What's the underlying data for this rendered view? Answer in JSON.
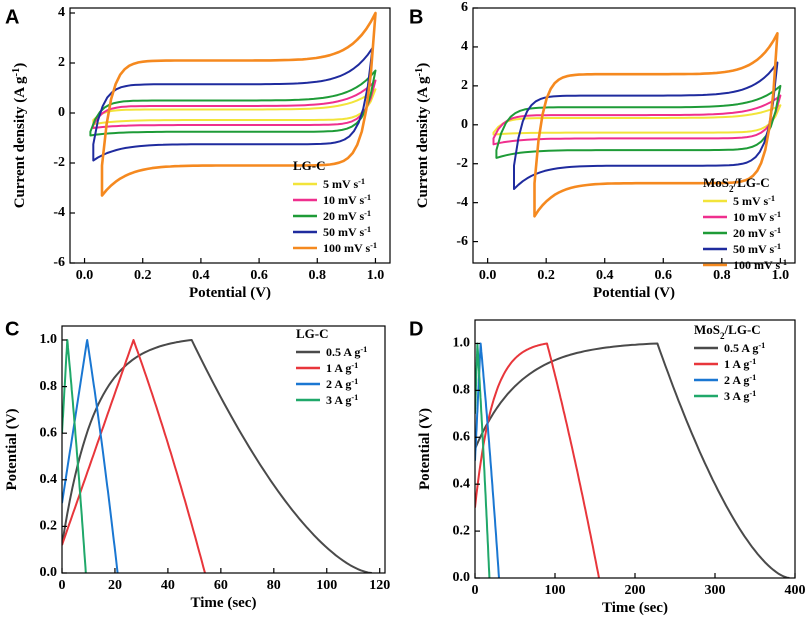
{
  "chart_data": [
    {
      "panel": "A",
      "type": "line",
      "title": "",
      "xlabel": "Potential (V)",
      "ylabel": "Current density (A g⁻¹)",
      "xlim": [
        -0.05,
        1.05
      ],
      "ylim": [
        -6,
        4.2
      ],
      "xticks": [
        0.0,
        0.2,
        0.4,
        0.6,
        0.8,
        1.0
      ],
      "yticks": [
        -6,
        -4,
        -2,
        0,
        2,
        4
      ],
      "grid": false,
      "legend_title": "LG-C",
      "legend_position": "bottom-right",
      "series": [
        {
          "name": "5 mV s⁻¹",
          "color": "#f2e43a",
          "style": "cv",
          "x_min": 0.03,
          "x_max": 1.0,
          "upper": 0.14,
          "lower": -0.28,
          "max_y": 0.95,
          "min_y": -0.45
        },
        {
          "name": "10 mV s⁻¹",
          "color": "#ef2f8e",
          "style": "cv",
          "x_min": 0.03,
          "x_max": 1.0,
          "upper": 0.28,
          "lower": -0.48,
          "max_y": 1.3,
          "min_y": -0.6
        },
        {
          "name": "20 mV s⁻¹",
          "color": "#1e9b37",
          "style": "cv",
          "x_min": 0.02,
          "x_max": 1.0,
          "upper": 0.5,
          "lower": -0.75,
          "max_y": 1.7,
          "min_y": -0.9
        },
        {
          "name": "50 mV s⁻¹",
          "color": "#1f2b9e",
          "style": "cv",
          "x_min": 0.03,
          "x_max": 0.99,
          "upper": 1.15,
          "lower": -1.25,
          "max_y": 2.6,
          "min_y": -1.9
        },
        {
          "name": "100 mV s⁻¹",
          "color": "#f5891f",
          "style": "cv",
          "x_min": 0.06,
          "x_max": 1.0,
          "upper": 2.1,
          "lower": -2.1,
          "max_y": 4.0,
          "min_y": -3.3
        }
      ]
    },
    {
      "panel": "B",
      "type": "line",
      "title": "",
      "xlabel": "Potential (V)",
      "ylabel": "Current density (A g⁻¹)",
      "xlim": [
        -0.05,
        1.05
      ],
      "ylim": [
        -7.1,
        6
      ],
      "xticks": [
        0.0,
        0.2,
        0.4,
        0.6,
        0.8,
        1.0
      ],
      "yticks": [
        -6,
        -4,
        -2,
        0,
        2,
        4,
        6
      ],
      "grid": false,
      "legend_title": "MoS₂/LG-C",
      "legend_position": "bottom-right",
      "series": [
        {
          "name": "5 mV s⁻¹",
          "color": "#f2e43a",
          "style": "cv",
          "x_min": 0.02,
          "x_max": 1.0,
          "upper": 0.35,
          "lower": -0.4,
          "max_y": 1.0,
          "min_y": -0.5
        },
        {
          "name": "10 mV s⁻¹",
          "color": "#ef2f8e",
          "style": "cv",
          "x_min": 0.02,
          "x_max": 1.0,
          "upper": 0.5,
          "lower": -0.7,
          "max_y": 1.5,
          "min_y": -1.0
        },
        {
          "name": "20 mV s⁻¹",
          "color": "#1e9b37",
          "style": "cv",
          "x_min": 0.03,
          "x_max": 1.0,
          "upper": 0.9,
          "lower": -1.3,
          "max_y": 2.0,
          "min_y": -1.7
        },
        {
          "name": "50 mV s⁻¹",
          "color": "#1f2b9e",
          "style": "cv",
          "x_min": 0.09,
          "x_max": 0.99,
          "upper": 1.5,
          "lower": -2.1,
          "max_y": 3.2,
          "min_y": -3.3
        },
        {
          "name": "100 mV s⁻¹",
          "color": "#f5891f",
          "style": "cv",
          "x_min": 0.16,
          "x_max": 0.99,
          "upper": 2.6,
          "lower": -3.0,
          "max_y": 4.7,
          "min_y": -4.7
        }
      ]
    },
    {
      "panel": "C",
      "type": "line",
      "title": "",
      "xlabel": "Time (sec)",
      "ylabel": "Potential (V)",
      "xlim": [
        0,
        122
      ],
      "ylim": [
        0,
        1.06
      ],
      "xticks": [
        0,
        20,
        40,
        60,
        80,
        100,
        120
      ],
      "yticks": [
        0.0,
        0.2,
        0.4,
        0.6,
        0.8,
        1.0
      ],
      "grid": false,
      "legend_title": "LG-C",
      "legend_position": "top-right",
      "series": [
        {
          "name": "0.5 A g⁻¹",
          "color": "#4a4a4a",
          "style": "gcd",
          "t_start": 0,
          "t_peak": 49,
          "t_end": 117,
          "v_start": 0.12,
          "charge_shape": "concave",
          "discharge_shape": "convex"
        },
        {
          "name": "1 A g⁻¹",
          "color": "#e8363b",
          "style": "gcd",
          "t_start": 0,
          "t_peak": 27,
          "t_end": 54,
          "v_start": 0.12,
          "charge_shape": "linear",
          "discharge_shape": "slight"
        },
        {
          "name": "2 A g⁻¹",
          "color": "#1a77d2",
          "style": "gcd",
          "t_start": 0,
          "t_peak": 9.5,
          "t_end": 21,
          "v_start": 0.3,
          "charge_shape": "linear",
          "discharge_shape": "slight"
        },
        {
          "name": "3 A g⁻¹",
          "color": "#20a86a",
          "style": "gcd",
          "t_start": 0,
          "t_peak": 2,
          "t_end": 9,
          "v_start": 0.6,
          "charge_shape": "linear",
          "discharge_shape": "slight"
        }
      ]
    },
    {
      "panel": "D",
      "type": "line",
      "title": "",
      "xlabel": "Time (sec)",
      "ylabel": "Potential (V)",
      "xlim": [
        0,
        400
      ],
      "ylim": [
        0,
        1.1
      ],
      "xticks": [
        0,
        100,
        200,
        300,
        400
      ],
      "yticks": [
        0.0,
        0.2,
        0.4,
        0.6,
        0.8,
        1.0
      ],
      "grid": false,
      "legend_title": "MoS₂/LG-C",
      "legend_position": "top-right",
      "series": [
        {
          "name": "0.5 A g⁻¹",
          "color": "#4a4a4a",
          "style": "gcd",
          "t_start": 0,
          "t_peak": 228,
          "t_end": 393,
          "v_start": 0.55,
          "charge_shape": "concave",
          "discharge_shape": "convex"
        },
        {
          "name": "1 A g⁻¹",
          "color": "#e8363b",
          "style": "gcd",
          "t_start": 0,
          "t_peak": 90,
          "t_end": 155,
          "v_start": 0.3,
          "charge_shape": "concave",
          "discharge_shape": "slight"
        },
        {
          "name": "2 A g⁻¹",
          "color": "#1a77d2",
          "style": "gcd",
          "t_start": 0,
          "t_peak": 7,
          "t_end": 30,
          "v_start": 0.5,
          "charge_shape": "linear",
          "discharge_shape": "slight"
        },
        {
          "name": "3 A g⁻¹",
          "color": "#20a86a",
          "style": "gcd",
          "t_start": 0,
          "t_peak": 3,
          "t_end": 18,
          "v_start": 0.7,
          "charge_shape": "linear",
          "discharge_shape": "slight"
        }
      ]
    }
  ]
}
